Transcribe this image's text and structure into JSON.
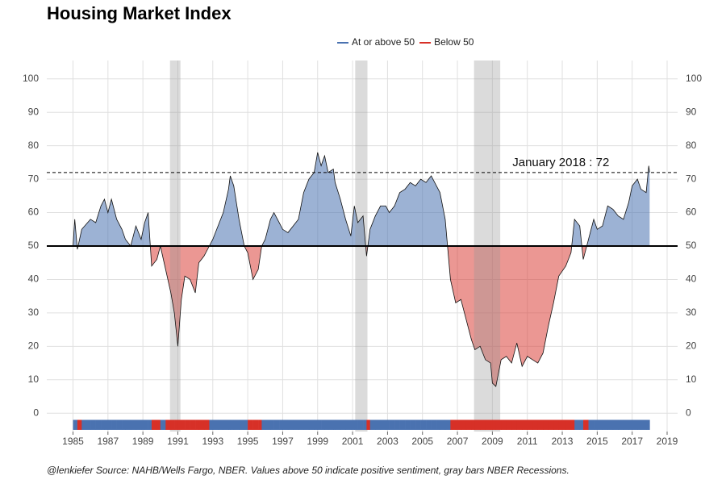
{
  "chart_data": {
    "type": "area",
    "title": "Housing Market Index",
    "footnote": "@lenkiefer Source: NAHB/Wells Fargo, NBER. Values above 50 indicate positive sentiment, gray bars NBER Recessions.",
    "legend": [
      {
        "name": "At or above 50",
        "color": "#4a72b0"
      },
      {
        "name": "Below 50",
        "color": "#d73027"
      }
    ],
    "threshold": 50,
    "annotation": {
      "text": "January 2018 : 72",
      "x": 2018.0,
      "y": 72
    },
    "recessions": [
      [
        1990.55,
        1991.15
      ],
      [
        2001.15,
        2001.85
      ],
      [
        2007.95,
        2009.45
      ]
    ],
    "xlim": [
      1983.5,
      2019.6
    ],
    "ylim": [
      -5.5,
      105.5
    ],
    "xticks": [
      1985,
      1987,
      1989,
      1991,
      1993,
      1995,
      1997,
      1999,
      2001,
      2003,
      2005,
      2007,
      2009,
      2011,
      2013,
      2015,
      2017,
      2019
    ],
    "yticks": [
      0,
      10,
      20,
      30,
      40,
      50,
      60,
      70,
      80,
      90,
      100
    ],
    "grid": true,
    "x": [
      1985.0,
      1985.1,
      1985.25,
      1985.5,
      1986.0,
      1986.3,
      1986.6,
      1986.8,
      1987.0,
      1987.2,
      1987.5,
      1987.8,
      1988.0,
      1988.3,
      1988.6,
      1988.9,
      1989.1,
      1989.3,
      1989.5,
      1989.8,
      1990.0,
      1990.3,
      1990.6,
      1990.8,
      1991.0,
      1991.2,
      1991.4,
      1991.7,
      1992.0,
      1992.2,
      1992.5,
      1992.8,
      1993.0,
      1993.3,
      1993.6,
      1993.9,
      1994.0,
      1994.2,
      1994.5,
      1994.8,
      1995.0,
      1995.3,
      1995.6,
      1995.8,
      1996.0,
      1996.3,
      1996.5,
      1996.8,
      1997.0,
      1997.3,
      1997.6,
      1997.9,
      1998.2,
      1998.5,
      1998.8,
      1999.0,
      1999.2,
      1999.4,
      1999.6,
      1999.9,
      2000.0,
      2000.3,
      2000.6,
      2000.9,
      2001.1,
      2001.3,
      2001.6,
      2001.8,
      2002.0,
      2002.3,
      2002.6,
      2002.9,
      2003.1,
      2003.4,
      2003.7,
      2004.0,
      2004.3,
      2004.6,
      2004.9,
      2005.2,
      2005.5,
      2005.8,
      2006.0,
      2006.3,
      2006.6,
      2006.9,
      2007.2,
      2007.5,
      2007.8,
      2008.0,
      2008.3,
      2008.6,
      2008.9,
      2009.0,
      2009.2,
      2009.5,
      2009.8,
      2010.1,
      2010.4,
      2010.7,
      2011.0,
      2011.3,
      2011.6,
      2011.9,
      2012.2,
      2012.5,
      2012.8,
      2013.2,
      2013.5,
      2013.7,
      2014.0,
      2014.2,
      2014.5,
      2014.8,
      2015.0,
      2015.3,
      2015.6,
      2015.9,
      2016.2,
      2016.5,
      2016.8,
      2017.0,
      2017.3,
      2017.5,
      2017.8,
      2017.95,
      2018.0
    ],
    "values": [
      50,
      58,
      49,
      55,
      58,
      57,
      62,
      64,
      60,
      64,
      58,
      55,
      52,
      50,
      56,
      52,
      57,
      60,
      44,
      46,
      50,
      43,
      36,
      30,
      20,
      34,
      41,
      40,
      36,
      45,
      47,
      50,
      52,
      56,
      60,
      67,
      71,
      68,
      58,
      50,
      48,
      40,
      43,
      50,
      52,
      58,
      60,
      57,
      55,
      54,
      56,
      58,
      66,
      70,
      72,
      78,
      74,
      77,
      72,
      73,
      69,
      64,
      58,
      53,
      62,
      57,
      59,
      47,
      55,
      59,
      62,
      62,
      60,
      62,
      66,
      67,
      69,
      68,
      70,
      69,
      71,
      68,
      66,
      58,
      40,
      33,
      34,
      28,
      22,
      19,
      20,
      16,
      15,
      9,
      8,
      16,
      17,
      15,
      21,
      14,
      17,
      16,
      15,
      18,
      26,
      33,
      41,
      44,
      48,
      58,
      56,
      46,
      52,
      58,
      55,
      56,
      62,
      61,
      59,
      58,
      63,
      68,
      70,
      67,
      66,
      74,
      72
    ]
  }
}
